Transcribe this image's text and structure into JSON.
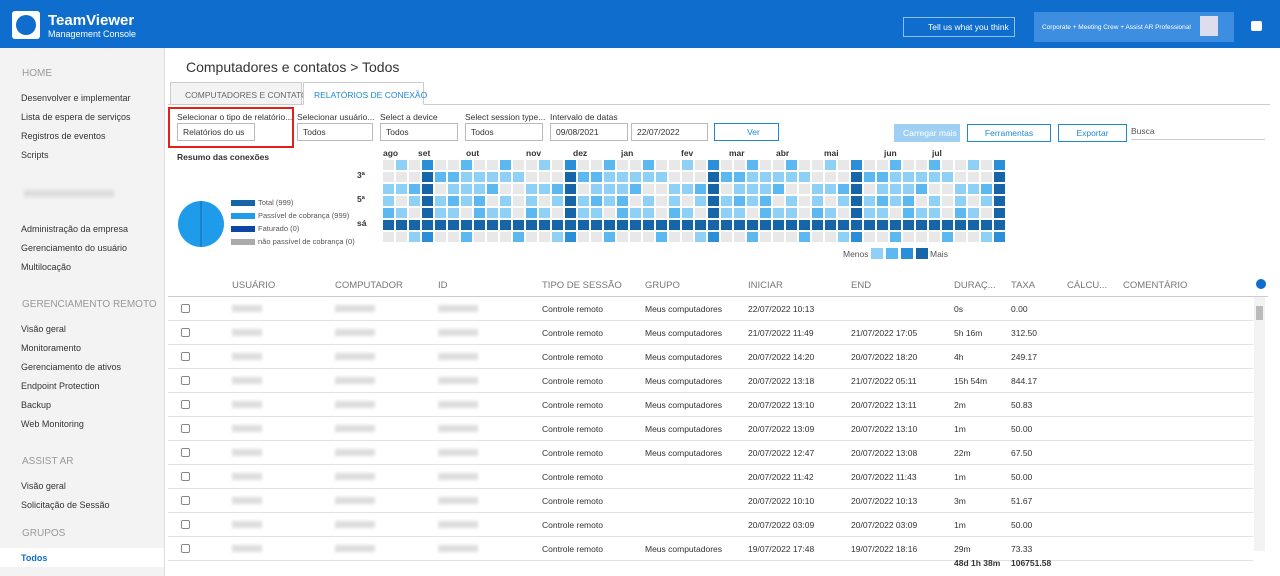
{
  "header": {
    "brand": "TeamViewer",
    "subtitle": "Management Console",
    "feedback": "Tell us what you think",
    "license": "Corporate + Meeting Crew + Assist AR Professional"
  },
  "sidebar": {
    "sections": [
      {
        "title": "HOME",
        "items": [
          "Desenvolver e implementar",
          "Lista de espera de serviços",
          "Registros de eventos",
          "Scripts"
        ]
      },
      {
        "title": null,
        "items": [
          "Administração da empresa",
          "Gerenciamento do usuário",
          "Multilocação"
        ]
      },
      {
        "title": "GERENCIAMENTO REMOTO",
        "items": [
          "Visão geral",
          "Monitoramento",
          "Gerenciamento de ativos",
          "Endpoint Protection",
          "Backup",
          "Web Monitoring"
        ]
      },
      {
        "title": "ASSIST AR",
        "items": [
          "Visão geral",
          "Solicitação de Sessão"
        ]
      },
      {
        "title": "GRUPOS",
        "items": [
          "Todos"
        ]
      }
    ]
  },
  "breadcrumb": "Computadores e contatos > Todos",
  "tabs": [
    "COMPUTADORES E CONTATOS",
    "RELATÓRIOS DE CONEXÃO"
  ],
  "filters": [
    {
      "label": "Selecionar o tipo de relatório...",
      "value": "Relatórios do us"
    },
    {
      "label": "Selecionar usuário...",
      "value": "Todos"
    },
    {
      "label": "Select a device",
      "value": "Todos"
    },
    {
      "label": "Select session type...",
      "value": "Todos"
    },
    {
      "label": "Intervalo de datas",
      "from": "09/08/2021",
      "to": "22/07/2022"
    }
  ],
  "buttons": {
    "view": "Ver",
    "load_more": "Carregar mais",
    "tools": "Ferramentas",
    "export": "Exportar",
    "search": "Busca"
  },
  "summary": {
    "title": "Resumo das conexões",
    "legend": [
      "Total (999)",
      "Passível de cobrança (999)",
      "Faturado (0)",
      "não passível de cobrança (0)"
    ],
    "months": [
      "ago",
      "set",
      "out",
      "nov",
      "dez",
      "jan",
      "fev",
      "mar",
      "abr",
      "mai",
      "jun",
      "jul"
    ],
    "days": [
      "3ª",
      "5ª",
      "sá"
    ],
    "scale_less": "Menos",
    "scale_more": "Mais"
  },
  "table": {
    "columns": [
      "USUÁRIO",
      "COMPUTADOR",
      "ID",
      "TIPO DE SESSÃO",
      "GRUPO",
      "INICIAR",
      "END",
      "DURAÇ...",
      "TAXA",
      "CÁLCU...",
      "COMENTÁRIO"
    ],
    "rows": [
      [
        "Controle remoto",
        "Meus computadores",
        "22/07/2022 10:13",
        null,
        "0s",
        "0.00"
      ],
      [
        "Controle remoto",
        "Meus computadores",
        "21/07/2022 11:49",
        "21/07/2022 17:05",
        "5h 16m",
        "312.50"
      ],
      [
        "Controle remoto",
        "Meus computadores",
        "20/07/2022 14:20",
        "20/07/2022 18:20",
        "4h",
        "249.17"
      ],
      [
        "Controle remoto",
        "Meus computadores",
        "20/07/2022 13:18",
        "21/07/2022 05:11",
        "15h 54m",
        "844.17"
      ],
      [
        "Controle remoto",
        "Meus computadores",
        "20/07/2022 13:10",
        "20/07/2022 13:11",
        "2m",
        "50.83"
      ],
      [
        "Controle remoto",
        "Meus computadores",
        "20/07/2022 13:09",
        "20/07/2022 13:10",
        "1m",
        "50.00"
      ],
      [
        "Controle remoto",
        "Meus computadores",
        "20/07/2022 12:47",
        "20/07/2022 13:08",
        "22m",
        "67.50"
      ],
      [
        "Controle remoto",
        null,
        "20/07/2022 11:42",
        "20/07/2022 11:43",
        "1m",
        "50.00"
      ],
      [
        "Controle remoto",
        null,
        "20/07/2022 10:10",
        "20/07/2022 10:13",
        "3m",
        "51.67"
      ],
      [
        "Controle remoto",
        null,
        "20/07/2022 03:09",
        "20/07/2022 03:09",
        "1m",
        "50.00"
      ],
      [
        "Controle remoto",
        "Meus computadores",
        "19/07/2022 17:48",
        "19/07/2022 18:16",
        "29m",
        "73.33"
      ]
    ],
    "totals": {
      "duration": "48d 1h 38m",
      "rate": "106751.58"
    }
  }
}
